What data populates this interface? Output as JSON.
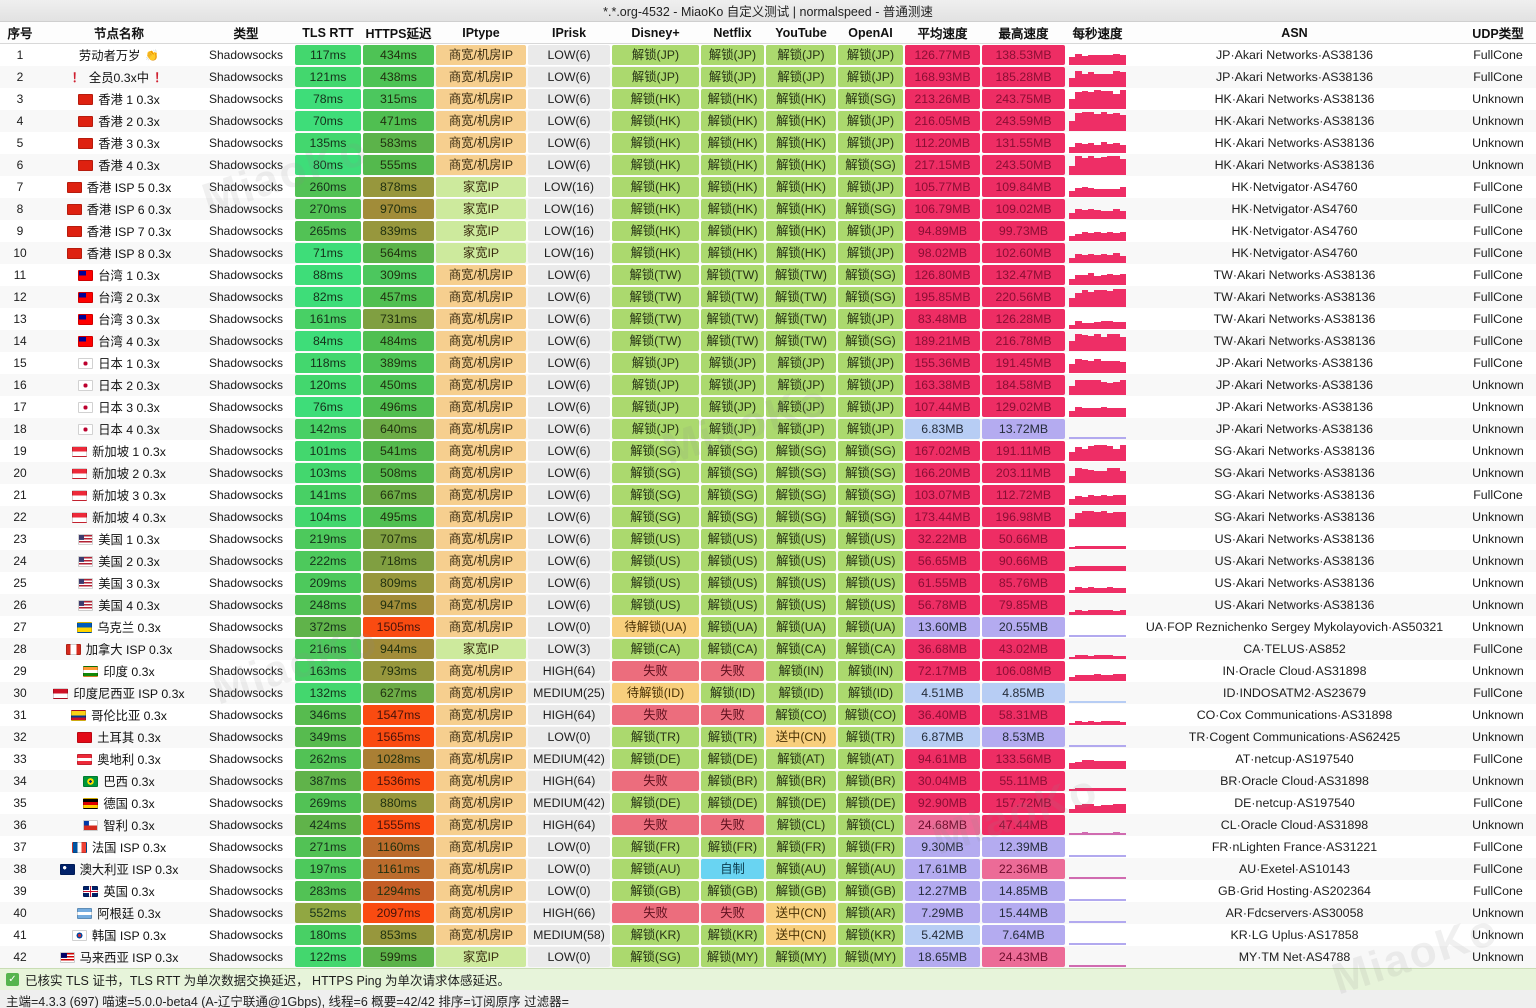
{
  "title": "*.*.org-4532 - MiaoKo 自定义测试 | normalspeed - 普通测速",
  "columns": [
    "序号",
    "节点名称",
    "类型",
    "TLS RTT",
    "HTTPS延迟",
    "IPtype",
    "IPrisk",
    "Disney+",
    "Netflix",
    "YouTube",
    "OpenAI",
    "平均速度",
    "最高速度",
    "每秒速度",
    "ASN",
    "UDP类型"
  ],
  "node_type": "Shadowsocks",
  "iptype_labels": {
    "dc": "商宽/机房IP",
    "home": "家宽IP"
  },
  "watermark_text": "MiaoKo",
  "colors": {
    "unlock_ok_bg": "#abd96e",
    "unlock_ok_text": "#273315",
    "unlock_pending_bg": "#f8cf7d",
    "unlock_pending_text": "#4a3205",
    "unlock_fail_bg": "#ec6d7d",
    "unlock_fail_text": "#5d0f1d",
    "unlock_selfmade_bg": "#69d4f2",
    "unlock_selfmade_text": "#0b3c4e",
    "iptype_dc_bg": "#f6cf8f",
    "iptype_home_bg": "#cdea9d",
    "iptype_text": "#3a2c10",
    "risk_bg": "#eaeaea",
    "risk_text": "#1e1e1e",
    "speed_fast_bg": "#ee2d64",
    "speed_fast_text": "#8a0f34",
    "speed_pink_bg": "#ec6b97",
    "speed_purple_bg": "#b4abf0",
    "speed_blue_bg": "#b7cdf4",
    "speed_slow_text": "#242c3a"
  },
  "footer": {
    "note": "已核实 TLS 证书，TLS RTT 为单次数据交换延迟， HTTPS Ping 为单次请求体感延迟。",
    "stats": "主端=4.3.3 (697) 喵速=5.0.0-beta4 (A-辽宁联通@1Gbps), 线程=6 概要=42/42 排序=订阅原序 过滤器="
  },
  "rows": [
    {
      "no": 1,
      "flag": "",
      "emoji": "👏",
      "warn": false,
      "name": "劳动者万岁",
      "tls": 117,
      "https": 434,
      "ip": "dc",
      "risk": "LOW(6)",
      "unlocks": [
        "解锁(JP)",
        "解锁(JP)",
        "解锁(JP)",
        "解锁(JP)"
      ],
      "avg": 126.77,
      "max": 138.53,
      "asn": "JP·Akari Networks·AS38136",
      "udp": "FullCone"
    },
    {
      "no": 2,
      "flag": "",
      "emoji": "",
      "warn": true,
      "name": "全员0.3x中",
      "tls": 121,
      "https": 438,
      "ip": "dc",
      "risk": "LOW(6)",
      "unlocks": [
        "解锁(JP)",
        "解锁(JP)",
        "解锁(JP)",
        "解锁(JP)"
      ],
      "avg": 168.93,
      "max": 185.28,
      "asn": "JP·Akari Networks·AS38136",
      "udp": "FullCone"
    },
    {
      "no": 3,
      "flag": "hk",
      "emoji": "",
      "warn": false,
      "name": "香港 1 0.3x",
      "tls": 78,
      "https": 315,
      "ip": "dc",
      "risk": "LOW(6)",
      "unlocks": [
        "解锁(HK)",
        "解锁(HK)",
        "解锁(HK)",
        "解锁(SG)"
      ],
      "avg": 213.26,
      "max": 243.75,
      "asn": "HK·Akari Networks·AS38136",
      "udp": "Unknown"
    },
    {
      "no": 4,
      "flag": "hk",
      "emoji": "",
      "warn": false,
      "name": "香港 2 0.3x",
      "tls": 70,
      "https": 471,
      "ip": "dc",
      "risk": "LOW(6)",
      "unlocks": [
        "解锁(HK)",
        "解锁(HK)",
        "解锁(HK)",
        "解锁(JP)"
      ],
      "avg": 216.05,
      "max": 243.59,
      "asn": "HK·Akari Networks·AS38136",
      "udp": "Unknown"
    },
    {
      "no": 5,
      "flag": "hk",
      "emoji": "",
      "warn": false,
      "name": "香港 3 0.3x",
      "tls": 135,
      "https": 583,
      "ip": "dc",
      "risk": "LOW(6)",
      "unlocks": [
        "解锁(HK)",
        "解锁(HK)",
        "解锁(HK)",
        "解锁(JP)"
      ],
      "avg": 112.2,
      "max": 131.55,
      "asn": "HK·Akari Networks·AS38136",
      "udp": "Unknown"
    },
    {
      "no": 6,
      "flag": "hk",
      "emoji": "",
      "warn": false,
      "name": "香港 4 0.3x",
      "tls": 80,
      "https": 555,
      "ip": "dc",
      "risk": "LOW(6)",
      "unlocks": [
        "解锁(HK)",
        "解锁(HK)",
        "解锁(HK)",
        "解锁(SG)"
      ],
      "avg": 217.15,
      "max": 243.5,
      "asn": "HK·Akari Networks·AS38136",
      "udp": "Unknown"
    },
    {
      "no": 7,
      "flag": "hk",
      "emoji": "",
      "warn": false,
      "name": "香港 ISP 5 0.3x",
      "tls": 260,
      "https": 878,
      "ip": "home",
      "risk": "LOW(16)",
      "unlocks": [
        "解锁(HK)",
        "解锁(HK)",
        "解锁(HK)",
        "解锁(JP)"
      ],
      "avg": 105.77,
      "max": 109.84,
      "asn": "HK·Netvigator·AS4760",
      "udp": "FullCone"
    },
    {
      "no": 8,
      "flag": "hk",
      "emoji": "",
      "warn": false,
      "name": "香港 ISP 6  0.3x",
      "tls": 270,
      "https": 970,
      "ip": "home",
      "risk": "LOW(16)",
      "unlocks": [
        "解锁(HK)",
        "解锁(HK)",
        "解锁(HK)",
        "解锁(SG)"
      ],
      "avg": 106.79,
      "max": 109.02,
      "asn": "HK·Netvigator·AS4760",
      "udp": "FullCone"
    },
    {
      "no": 9,
      "flag": "hk",
      "emoji": "",
      "warn": false,
      "name": "香港 ISP 7 0.3x",
      "tls": 265,
      "https": 839,
      "ip": "home",
      "risk": "LOW(16)",
      "unlocks": [
        "解锁(HK)",
        "解锁(HK)",
        "解锁(HK)",
        "解锁(JP)"
      ],
      "avg": 94.89,
      "max": 99.73,
      "asn": "HK·Netvigator·AS4760",
      "udp": "FullCone"
    },
    {
      "no": 10,
      "flag": "hk",
      "emoji": "",
      "warn": false,
      "name": "香港 ISP 8 0.3x",
      "tls": 71,
      "https": 564,
      "ip": "home",
      "risk": "LOW(16)",
      "unlocks": [
        "解锁(HK)",
        "解锁(HK)",
        "解锁(HK)",
        "解锁(JP)"
      ],
      "avg": 98.02,
      "max": 102.6,
      "asn": "HK·Netvigator·AS4760",
      "udp": "FullCone"
    },
    {
      "no": 11,
      "flag": "tw",
      "emoji": "",
      "warn": false,
      "name": "台湾 1 0.3x",
      "tls": 88,
      "https": 309,
      "ip": "dc",
      "risk": "LOW(6)",
      "unlocks": [
        "解锁(TW)",
        "解锁(TW)",
        "解锁(TW)",
        "解锁(SG)"
      ],
      "avg": 126.8,
      "max": 132.47,
      "asn": "TW·Akari Networks·AS38136",
      "udp": "FullCone"
    },
    {
      "no": 12,
      "flag": "tw",
      "emoji": "",
      "warn": false,
      "name": "台湾 2 0.3x",
      "tls": 82,
      "https": 457,
      "ip": "dc",
      "risk": "LOW(6)",
      "unlocks": [
        "解锁(TW)",
        "解锁(TW)",
        "解锁(TW)",
        "解锁(SG)"
      ],
      "avg": 195.85,
      "max": 220.56,
      "asn": "TW·Akari Networks·AS38136",
      "udp": "FullCone"
    },
    {
      "no": 13,
      "flag": "tw",
      "emoji": "",
      "warn": false,
      "name": "台湾 3 0.3x",
      "tls": 161,
      "https": 731,
      "ip": "dc",
      "risk": "LOW(6)",
      "unlocks": [
        "解锁(TW)",
        "解锁(TW)",
        "解锁(TW)",
        "解锁(JP)"
      ],
      "avg": 83.48,
      "max": 126.28,
      "asn": "TW·Akari Networks·AS38136",
      "udp": "FullCone"
    },
    {
      "no": 14,
      "flag": "tw",
      "emoji": "",
      "warn": false,
      "name": "台湾 4 0.3x",
      "tls": 84,
      "https": 484,
      "ip": "dc",
      "risk": "LOW(6)",
      "unlocks": [
        "解锁(TW)",
        "解锁(TW)",
        "解锁(TW)",
        "解锁(SG)"
      ],
      "avg": 189.21,
      "max": 216.78,
      "asn": "TW·Akari Networks·AS38136",
      "udp": "FullCone"
    },
    {
      "no": 15,
      "flag": "jp",
      "emoji": "",
      "warn": false,
      "name": "日本 1 0.3x",
      "tls": 118,
      "https": 389,
      "ip": "dc",
      "risk": "LOW(6)",
      "unlocks": [
        "解锁(JP)",
        "解锁(JP)",
        "解锁(JP)",
        "解锁(JP)"
      ],
      "avg": 155.36,
      "max": 191.45,
      "asn": "JP·Akari Networks·AS38136",
      "udp": "FullCone"
    },
    {
      "no": 16,
      "flag": "jp",
      "emoji": "",
      "warn": false,
      "name": "日本 2 0.3x",
      "tls": 120,
      "https": 450,
      "ip": "dc",
      "risk": "LOW(6)",
      "unlocks": [
        "解锁(JP)",
        "解锁(JP)",
        "解锁(JP)",
        "解锁(JP)"
      ],
      "avg": 163.38,
      "max": 184.58,
      "asn": "JP·Akari Networks·AS38136",
      "udp": "Unknown"
    },
    {
      "no": 17,
      "flag": "jp",
      "emoji": "",
      "warn": false,
      "name": "日本 3 0.3x",
      "tls": 76,
      "https": 496,
      "ip": "dc",
      "risk": "LOW(6)",
      "unlocks": [
        "解锁(JP)",
        "解锁(JP)",
        "解锁(JP)",
        "解锁(JP)"
      ],
      "avg": 107.44,
      "max": 129.02,
      "asn": "JP·Akari Networks·AS38136",
      "udp": "Unknown"
    },
    {
      "no": 18,
      "flag": "jp",
      "emoji": "",
      "warn": false,
      "name": "日本 4 0.3x",
      "tls": 142,
      "https": 640,
      "ip": "dc",
      "risk": "LOW(6)",
      "unlocks": [
        "解锁(JP)",
        "解锁(JP)",
        "解锁(JP)",
        "解锁(JP)"
      ],
      "avg": 6.83,
      "max": 13.72,
      "asn": "JP·Akari Networks·AS38136",
      "udp": "Unknown"
    },
    {
      "no": 19,
      "flag": "sg",
      "emoji": "",
      "warn": false,
      "name": "新加坡 1 0.3x",
      "tls": 101,
      "https": 541,
      "ip": "dc",
      "risk": "LOW(6)",
      "unlocks": [
        "解锁(SG)",
        "解锁(SG)",
        "解锁(SG)",
        "解锁(SG)"
      ],
      "avg": 167.02,
      "max": 191.11,
      "asn": "SG·Akari Networks·AS38136",
      "udp": "Unknown"
    },
    {
      "no": 20,
      "flag": "sg",
      "emoji": "",
      "warn": false,
      "name": "新加坡 2 0.3x",
      "tls": 103,
      "https": 508,
      "ip": "dc",
      "risk": "LOW(6)",
      "unlocks": [
        "解锁(SG)",
        "解锁(SG)",
        "解锁(SG)",
        "解锁(SG)"
      ],
      "avg": 166.2,
      "max": 203.11,
      "asn": "SG·Akari Networks·AS38136",
      "udp": "Unknown"
    },
    {
      "no": 21,
      "flag": "sg",
      "emoji": "",
      "warn": false,
      "name": "新加坡 3 0.3x",
      "tls": 141,
      "https": 667,
      "ip": "dc",
      "risk": "LOW(6)",
      "unlocks": [
        "解锁(SG)",
        "解锁(SG)",
        "解锁(SG)",
        "解锁(SG)"
      ],
      "avg": 103.07,
      "max": 112.72,
      "asn": "SG·Akari Networks·AS38136",
      "udp": "FullCone"
    },
    {
      "no": 22,
      "flag": "sg",
      "emoji": "",
      "warn": false,
      "name": "新加坡 4 0.3x",
      "tls": 104,
      "https": 495,
      "ip": "dc",
      "risk": "LOW(6)",
      "unlocks": [
        "解锁(SG)",
        "解锁(SG)",
        "解锁(SG)",
        "解锁(SG)"
      ],
      "avg": 173.44,
      "max": 196.98,
      "asn": "SG·Akari Networks·AS38136",
      "udp": "Unknown"
    },
    {
      "no": 23,
      "flag": "us",
      "emoji": "",
      "warn": false,
      "name": "美国 1 0.3x",
      "tls": 219,
      "https": 707,
      "ip": "dc",
      "risk": "LOW(6)",
      "unlocks": [
        "解锁(US)",
        "解锁(US)",
        "解锁(US)",
        "解锁(US)"
      ],
      "avg": 32.22,
      "max": 50.66,
      "asn": "US·Akari Networks·AS38136",
      "udp": "Unknown"
    },
    {
      "no": 24,
      "flag": "us",
      "emoji": "",
      "warn": false,
      "name": "美国 2 0.3x",
      "tls": 222,
      "https": 718,
      "ip": "dc",
      "risk": "LOW(6)",
      "unlocks": [
        "解锁(US)",
        "解锁(US)",
        "解锁(US)",
        "解锁(US)"
      ],
      "avg": 56.65,
      "max": 90.66,
      "asn": "US·Akari Networks·AS38136",
      "udp": "Unknown"
    },
    {
      "no": 25,
      "flag": "us",
      "emoji": "",
      "warn": false,
      "name": "美国 3 0.3x",
      "tls": 209,
      "https": 809,
      "ip": "dc",
      "risk": "LOW(6)",
      "unlocks": [
        "解锁(US)",
        "解锁(US)",
        "解锁(US)",
        "解锁(US)"
      ],
      "avg": 61.55,
      "max": 85.76,
      "asn": "US·Akari Networks·AS38136",
      "udp": "Unknown"
    },
    {
      "no": 26,
      "flag": "us",
      "emoji": "",
      "warn": false,
      "name": "美国 4 0.3x",
      "tls": 248,
      "https": 947,
      "ip": "dc",
      "risk": "LOW(6)",
      "unlocks": [
        "解锁(US)",
        "解锁(US)",
        "解锁(US)",
        "解锁(US)"
      ],
      "avg": 56.78,
      "max": 79.85,
      "asn": "US·Akari Networks·AS38136",
      "udp": "Unknown"
    },
    {
      "no": 27,
      "flag": "ua",
      "emoji": "",
      "warn": false,
      "name": "乌克兰 0.3x",
      "tls": 372,
      "https": 1505,
      "ip": "dc",
      "risk": "LOW(0)",
      "unlocks": [
        "待解锁(UA)",
        "解锁(UA)",
        "解锁(UA)",
        "解锁(UA)"
      ],
      "avg": 13.6,
      "max": 20.55,
      "asn": "UA·FOP Reznichenko Sergey Mykolayovich·AS50321",
      "udp": "Unknown"
    },
    {
      "no": 28,
      "flag": "ca",
      "emoji": "",
      "warn": false,
      "name": "加拿大 ISP 0.3x",
      "tls": 216,
      "https": 944,
      "ip": "home",
      "risk": "LOW(3)",
      "unlocks": [
        "解锁(CA)",
        "解锁(CA)",
        "解锁(CA)",
        "解锁(CA)"
      ],
      "avg": 36.68,
      "max": 43.02,
      "asn": "CA·TELUS·AS852",
      "udp": "FullCone"
    },
    {
      "no": 29,
      "flag": "in",
      "emoji": "",
      "warn": false,
      "name": "印度 0.3x",
      "tls": 163,
      "https": 793,
      "ip": "dc",
      "risk": "HIGH(64)",
      "unlocks": [
        "失败",
        "失败",
        "解锁(IN)",
        "解锁(IN)"
      ],
      "avg": 72.17,
      "max": 106.08,
      "asn": "IN·Oracle Cloud·AS31898",
      "udp": "Unknown"
    },
    {
      "no": 30,
      "flag": "id",
      "emoji": "",
      "warn": false,
      "name": "印度尼西亚 ISP 0.3x",
      "tls": 132,
      "https": 627,
      "ip": "dc",
      "risk": "MEDIUM(25)",
      "unlocks": [
        "待解锁(ID)",
        "解锁(ID)",
        "解锁(ID)",
        "解锁(ID)"
      ],
      "avg": 4.51,
      "max": 4.85,
      "asn": "ID·INDOSATM2·AS23679",
      "udp": "FullCone"
    },
    {
      "no": 31,
      "flag": "co",
      "emoji": "",
      "warn": false,
      "name": "哥伦比亚 0.3x",
      "tls": 346,
      "https": 1547,
      "ip": "dc",
      "risk": "HIGH(64)",
      "unlocks": [
        "失败",
        "失败",
        "解锁(CO)",
        "解锁(CO)"
      ],
      "avg": 36.4,
      "max": 58.31,
      "asn": "CO·Cox Communications·AS31898",
      "udp": "Unknown"
    },
    {
      "no": 32,
      "flag": "tr",
      "emoji": "",
      "warn": false,
      "name": "土耳其 0.3x",
      "tls": 349,
      "https": 1565,
      "ip": "dc",
      "risk": "LOW(0)",
      "unlocks": [
        "解锁(TR)",
        "解锁(TR)",
        "送中(CN)",
        "解锁(TR)"
      ],
      "avg": 6.87,
      "max": 8.53,
      "asn": "TR·Cogent Communications·AS62425",
      "udp": "Unknown"
    },
    {
      "no": 33,
      "flag": "at",
      "emoji": "",
      "warn": false,
      "name": "奥地利 0.3x",
      "tls": 262,
      "https": 1028,
      "ip": "dc",
      "risk": "MEDIUM(42)",
      "unlocks": [
        "解锁(DE)",
        "解锁(DE)",
        "解锁(AT)",
        "解锁(AT)"
      ],
      "avg": 94.61,
      "max": 133.56,
      "asn": "AT·netcup·AS197540",
      "udp": "FullCone"
    },
    {
      "no": 34,
      "flag": "br",
      "emoji": "",
      "warn": false,
      "name": "巴西 0.3x",
      "tls": 387,
      "https": 1536,
      "ip": "dc",
      "risk": "HIGH(64)",
      "unlocks": [
        "失败",
        "解锁(BR)",
        "解锁(BR)",
        "解锁(BR)"
      ],
      "avg": 30.04,
      "max": 55.11,
      "asn": "BR·Oracle Cloud·AS31898",
      "udp": "Unknown"
    },
    {
      "no": 35,
      "flag": "de",
      "emoji": "",
      "warn": false,
      "name": "德国 0.3x",
      "tls": 269,
      "https": 880,
      "ip": "dc",
      "risk": "MEDIUM(42)",
      "unlocks": [
        "解锁(DE)",
        "解锁(DE)",
        "解锁(DE)",
        "解锁(DE)"
      ],
      "avg": 92.9,
      "max": 157.72,
      "asn": "DE·netcup·AS197540",
      "udp": "FullCone"
    },
    {
      "no": 36,
      "flag": "cl",
      "emoji": "",
      "warn": false,
      "name": "智利 0.3x",
      "tls": 424,
      "https": 1555,
      "ip": "dc",
      "risk": "HIGH(64)",
      "unlocks": [
        "失败",
        "失败",
        "解锁(CL)",
        "解锁(CL)"
      ],
      "avg": 24.68,
      "max": 47.44,
      "asn": "CL·Oracle Cloud·AS31898",
      "udp": "Unknown"
    },
    {
      "no": 37,
      "flag": "fr",
      "emoji": "",
      "warn": false,
      "name": "法国 ISP 0.3x",
      "tls": 271,
      "https": 1160,
      "ip": "dc",
      "risk": "LOW(0)",
      "unlocks": [
        "解锁(FR)",
        "解锁(FR)",
        "解锁(FR)",
        "解锁(FR)"
      ],
      "avg": 9.3,
      "max": 12.39,
      "asn": "FR·nLighten France·AS31221",
      "udp": "FullCone"
    },
    {
      "no": 38,
      "flag": "au",
      "emoji": "",
      "warn": false,
      "name": "澳大利亚 ISP 0.3x",
      "tls": 197,
      "https": 1161,
      "ip": "dc",
      "risk": "LOW(0)",
      "unlocks": [
        "解锁(AU)",
        "自制",
        "解锁(AU)",
        "解锁(AU)"
      ],
      "avg": 17.61,
      "max": 22.36,
      "asn": "AU·Exetel·AS10143",
      "udp": "FullCone"
    },
    {
      "no": 39,
      "flag": "gb",
      "emoji": "",
      "warn": false,
      "name": "英国 0.3x",
      "tls": 283,
      "https": 1294,
      "ip": "dc",
      "risk": "LOW(0)",
      "unlocks": [
        "解锁(GB)",
        "解锁(GB)",
        "解锁(GB)",
        "解锁(GB)"
      ],
      "avg": 12.27,
      "max": 14.85,
      "asn": "GB·Grid Hosting·AS202364",
      "udp": "FullCone"
    },
    {
      "no": 40,
      "flag": "ar",
      "emoji": "",
      "warn": false,
      "name": "阿根廷 0.3x",
      "tls": 552,
      "https": 2097,
      "ip": "dc",
      "risk": "HIGH(66)",
      "unlocks": [
        "失败",
        "失败",
        "送中(CN)",
        "解锁(AR)"
      ],
      "avg": 7.29,
      "max": 15.44,
      "asn": "AR·Fdcservers·AS30058",
      "udp": "Unknown"
    },
    {
      "no": 41,
      "flag": "kr",
      "emoji": "",
      "warn": false,
      "name": "韩国 ISP 0.3x",
      "tls": 180,
      "https": 853,
      "ip": "dc",
      "risk": "MEDIUM(58)",
      "unlocks": [
        "解锁(KR)",
        "解锁(KR)",
        "送中(CN)",
        "解锁(KR)"
      ],
      "avg": 5.42,
      "max": 7.64,
      "asn": "KR·LG Uplus·AS17858",
      "udp": "Unknown"
    },
    {
      "no": 42,
      "flag": "my",
      "emoji": "",
      "warn": false,
      "name": "马来西亚 ISP 0.3x",
      "tls": 122,
      "https": 599,
      "ip": "home",
      "risk": "LOW(0)",
      "unlocks": [
        "解锁(SG)",
        "解锁(MY)",
        "解锁(MY)",
        "解锁(MY)"
      ],
      "avg": 18.65,
      "max": 24.43,
      "asn": "MY·TM Net·AS4788",
      "udp": "Unknown"
    }
  ]
}
